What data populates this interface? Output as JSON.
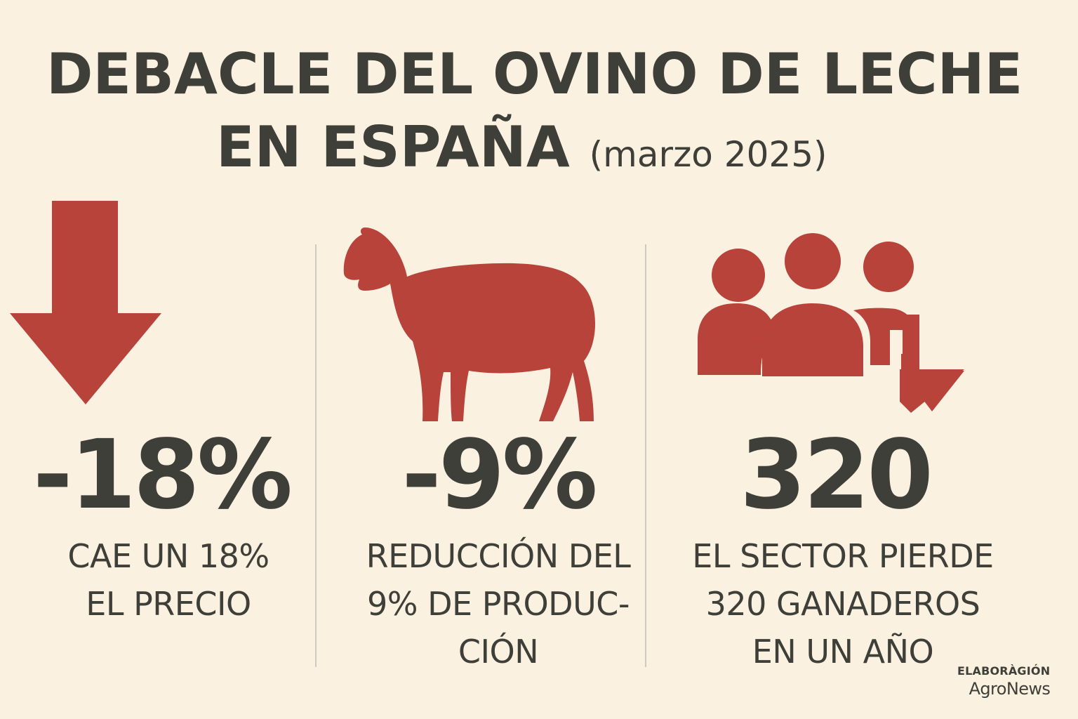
{
  "header": {
    "title_line1": "DEBACLE DEL OVINO DE LECHE",
    "title_line2": "EN ESPAÑA",
    "date": "(marzo 2025)"
  },
  "stats": [
    {
      "icon": "down-arrow-icon",
      "value": "-18%",
      "caption_lines": [
        "CAE UN 18%",
        "EL PRECIO"
      ]
    },
    {
      "icon": "sheep-icon",
      "value": "-9%",
      "caption_lines": [
        "REDUCCIÓN DEL",
        "9% DE PRODUC-",
        "CIÓN"
      ]
    },
    {
      "icon": "people-down-arrow-icon",
      "value": "320",
      "caption_lines": [
        "EL SECTOR PIERDE",
        "320 GANADEROS",
        "EN UN AÑO"
      ]
    }
  ],
  "credit": {
    "label": "ELABORÀGIÓN",
    "source": "AgroNews"
  },
  "colors": {
    "background": "#fbf1e1",
    "accent": "#b8433a",
    "text": "#3e3f38"
  }
}
